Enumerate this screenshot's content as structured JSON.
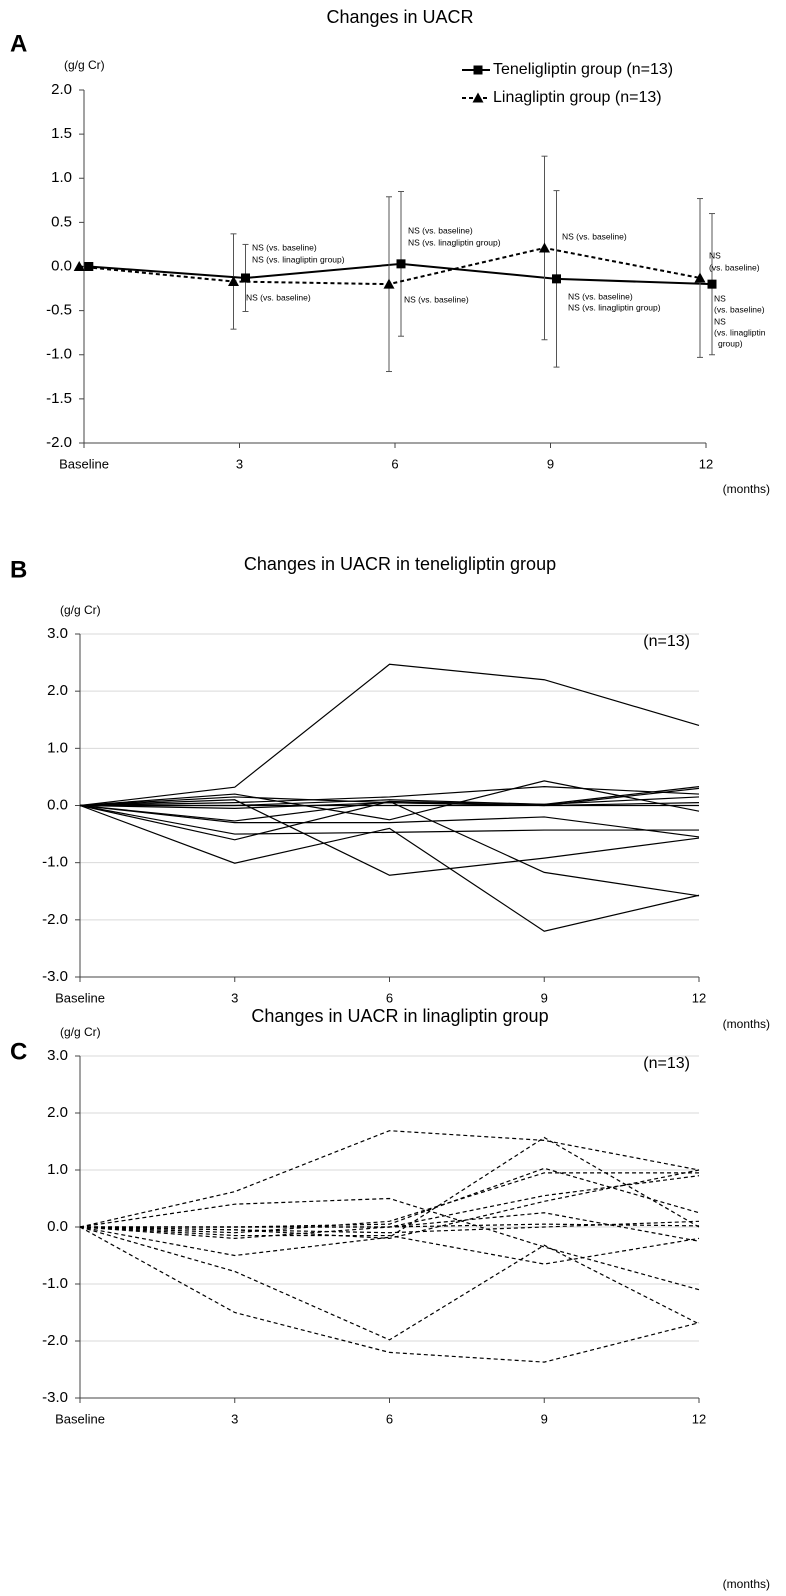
{
  "chart_data": [
    {
      "type": "line",
      "panel": "A",
      "title": "Changes in UACR",
      "y_unit": "(g/g Cr)",
      "x_unit": "(months)",
      "categories": [
        "Baseline",
        "3",
        "6",
        "9",
        "12"
      ],
      "ylim": [
        -2.0,
        2.0
      ],
      "yticks": [
        {
          "value": -2.0,
          "label": "-2.0"
        },
        {
          "value": -1.5,
          "label": "-1.5"
        },
        {
          "value": -1.0,
          "label": "-1.0"
        },
        {
          "value": -0.5,
          "label": "-0.5"
        },
        {
          "value": 0.0,
          "label": "0.0"
        },
        {
          "value": 0.5,
          "label": "0.5"
        },
        {
          "value": 1.0,
          "label": "1.0"
        },
        {
          "value": 1.5,
          "label": "1.5"
        },
        {
          "value": 2.0,
          "label": "2.0"
        }
      ],
      "grid": false,
      "legend": "top-right",
      "series": [
        {
          "name": "Teneligliptin group (n=13)",
          "color": "#000000",
          "marker": "square",
          "line_style": "solid",
          "values": [
            0,
            -0.13,
            0.03,
            -0.14,
            -0.2
          ],
          "errors": [
            null,
            0.38,
            0.82,
            1.0,
            0.8
          ]
        },
        {
          "name": "Linagliptin group (n=13)",
          "color": "#000000",
          "marker": "triangle",
          "line_style": "dashed",
          "values": [
            0,
            -0.17,
            -0.2,
            0.21,
            -0.13
          ],
          "errors": [
            null,
            0.54,
            0.99,
            1.04,
            0.9
          ]
        }
      ],
      "annotations": [
        "NS (vs. baseline)",
        "NS (vs. linagliptin group)",
        "NS (vs. baseline)",
        "NS (vs. baseline)",
        "NS (vs. linagliptin group)",
        "NS (vs. baseline)",
        "NS (vs. baseline)",
        "NS (vs. baseline)",
        "NS (vs. linagliptin group)",
        "NS",
        "(vs. baseline)",
        "NS",
        "(vs. baseline)",
        "NS",
        "(vs. linagliptin",
        "group)"
      ]
    },
    {
      "type": "line",
      "panel": "B",
      "title": "Changes in UACR in teneligliptin group",
      "y_unit": "(g/g Cr)",
      "x_unit": "(months)",
      "note": "(n=13)",
      "categories": [
        "Baseline",
        "3",
        "6",
        "9",
        "12"
      ],
      "ylim": [
        -3.0,
        3.0
      ],
      "yticks": [
        {
          "value": -3.0,
          "label": "-3.0"
        },
        {
          "value": -2.0,
          "label": "-2.0"
        },
        {
          "value": -1.0,
          "label": "-1.0"
        },
        {
          "value": 0.0,
          "label": "0.0"
        },
        {
          "value": 1.0,
          "label": "1.0"
        },
        {
          "value": 2.0,
          "label": "2.0"
        },
        {
          "value": 3.0,
          "label": "3.0"
        }
      ],
      "grid": true,
      "color": "#000000",
      "line_style": "solid",
      "series": [
        {
          "values": [
            0,
            0.32,
            2.47,
            2.2,
            1.4
          ]
        },
        {
          "values": [
            0,
            0.1,
            -1.22,
            -0.92,
            -0.57
          ]
        },
        {
          "values": [
            0,
            -1.01,
            -0.4,
            -2.2,
            -1.57
          ]
        },
        {
          "values": [
            0,
            -0.6,
            0.07,
            -1.17,
            -1.58
          ]
        },
        {
          "values": [
            0,
            -0.5,
            -0.47,
            -0.43,
            -0.43
          ]
        },
        {
          "values": [
            0,
            -0.3,
            -0.3,
            -0.2,
            -0.55
          ]
        },
        {
          "values": [
            0,
            0.2,
            -0.25,
            0.43,
            -0.1
          ]
        },
        {
          "values": [
            0,
            -0.27,
            0.07,
            0.02,
            0.33
          ]
        },
        {
          "values": [
            0,
            0.05,
            0.15,
            0.33,
            0.2
          ]
        },
        {
          "values": [
            0,
            0.0,
            0.0,
            0.0,
            0.3
          ]
        },
        {
          "values": [
            0,
            -0.05,
            0.05,
            0.0,
            0.05
          ]
        },
        {
          "values": [
            0,
            0.0,
            0.1,
            0.02,
            0.15
          ]
        },
        {
          "values": [
            0,
            0.15,
            0.05,
            0.0,
            0.0
          ]
        }
      ]
    },
    {
      "type": "line",
      "panel": "C",
      "title": "Changes in UACR in linagliptin group",
      "y_unit": "(g/g Cr)",
      "x_unit": "(months)",
      "note": "(n=13)",
      "categories": [
        "Baseline",
        "3",
        "6",
        "9",
        "12"
      ],
      "ylim": [
        -3.0,
        3.0
      ],
      "yticks": [
        {
          "value": -3.0,
          "label": "-3.0"
        },
        {
          "value": -2.0,
          "label": "-2.0"
        },
        {
          "value": -1.0,
          "label": "-1.0"
        },
        {
          "value": 0.0,
          "label": "0.0"
        },
        {
          "value": 1.0,
          "label": "1.0"
        },
        {
          "value": 2.0,
          "label": "2.0"
        },
        {
          "value": 3.0,
          "label": "3.0"
        }
      ],
      "grid": true,
      "color": "#000000",
      "line_style": "dashed",
      "series": [
        {
          "values": [
            0,
            0.62,
            1.69,
            1.52,
            1.0
          ]
        },
        {
          "values": [
            0,
            0.4,
            0.5,
            -0.35,
            -1.1
          ]
        },
        {
          "values": [
            0,
            -0.78,
            -1.98,
            -0.32,
            -1.7
          ]
        },
        {
          "values": [
            0,
            -1.5,
            -2.2,
            -2.37,
            -1.68
          ]
        },
        {
          "values": [
            0,
            -0.5,
            -0.18,
            1.57,
            0.0
          ]
        },
        {
          "values": [
            0,
            0.0,
            0.05,
            1.03,
            0.25
          ]
        },
        {
          "values": [
            0,
            -0.1,
            0.1,
            0.95,
            0.95
          ]
        },
        {
          "values": [
            0,
            -0.2,
            0.0,
            0.55,
            0.9
          ]
        },
        {
          "values": [
            0,
            -0.05,
            -0.2,
            0.45,
            1.0
          ]
        },
        {
          "values": [
            0,
            0.0,
            0.0,
            0.25,
            -0.25
          ]
        },
        {
          "values": [
            0,
            -0.15,
            -0.15,
            -0.65,
            -0.2
          ]
        },
        {
          "values": [
            0,
            0.0,
            0.0,
            0.05,
            0.02
          ]
        },
        {
          "values": [
            0,
            -0.05,
            -0.1,
            0.0,
            0.1
          ]
        }
      ]
    }
  ]
}
